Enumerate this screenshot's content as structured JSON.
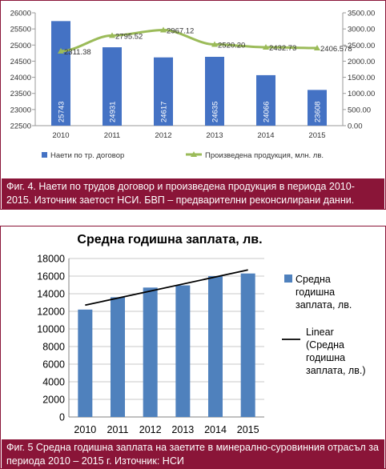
{
  "chart_data": [
    {
      "type": "bar",
      "categories": [
        "2010",
        "2011",
        "2012",
        "2013",
        "2014",
        "2015"
      ],
      "series": [
        {
          "name": "Наети по тр. договор",
          "type": "bar",
          "axis": "left",
          "values": [
            25743,
            24931,
            24617,
            24635,
            24066,
            23608
          ],
          "labels": [
            "25743",
            "24931",
            "24617",
            "24635",
            "24066",
            "23608"
          ],
          "color": "#4472c4"
        },
        {
          "name": "Произведена продукция, млн. лв.",
          "type": "line",
          "axis": "right",
          "values": [
            2311.38,
            2795.52,
            2967.12,
            2520.2,
            2432.73,
            2406.578
          ],
          "labels": [
            "2311.38",
            "2795.52",
            "2967.12",
            "2520.20",
            "2432.73",
            "2406.578"
          ],
          "color": "#9bbb59"
        }
      ],
      "ylim": [
        22500,
        26000
      ],
      "yticks": [
        "22500",
        "23000",
        "23500",
        "24000",
        "24500",
        "25000",
        "25500",
        "26000"
      ],
      "y2lim": [
        0,
        3500
      ],
      "y2ticks": [
        "0.00",
        "500.00",
        "1000.00",
        "1500.00",
        "2000.00",
        "2500.00",
        "3000.00",
        "3500.00"
      ],
      "grid": false,
      "legend": "bottom",
      "caption": "Фиг. 4. Наети по трудов договор и произведена продукция в периода 2010-2015. Източник заетост НСИ. БВП – предварителни реконсилирани данни."
    },
    {
      "type": "bar",
      "title": "Средна годишна заплата, лв.",
      "categories": [
        "2010",
        "2011",
        "2012",
        "2013",
        "2014",
        "2015"
      ],
      "series": [
        {
          "name": "Средна годишна заплата, лв.",
          "type": "bar",
          "values": [
            12200,
            13600,
            14700,
            14950,
            16000,
            16300
          ],
          "color": "#4f81bd"
        },
        {
          "name": "Linear (Средна годишна заплата, лв.)",
          "type": "trendline",
          "values": [
            12700,
            13500,
            14300,
            15100,
            15900,
            16700
          ],
          "color": "#000000"
        }
      ],
      "legend_lines": [
        [
          "Средна",
          "годишна",
          "заплата, лв."
        ],
        [
          "Linear",
          "(Средна",
          "годишна",
          "заплата, лв.)"
        ]
      ],
      "ylim": [
        0,
        18000
      ],
      "yticks": [
        "0",
        "2000",
        "4000",
        "6000",
        "8000",
        "10000",
        "12000",
        "14000",
        "16000",
        "18000"
      ],
      "grid": true,
      "legend": "right",
      "caption": "Фиг. 5 Средна годишна заплата на заетите в минерално-суровинния отрасъл за периода 2010 – 2015 г. Източник: НСИ"
    }
  ]
}
